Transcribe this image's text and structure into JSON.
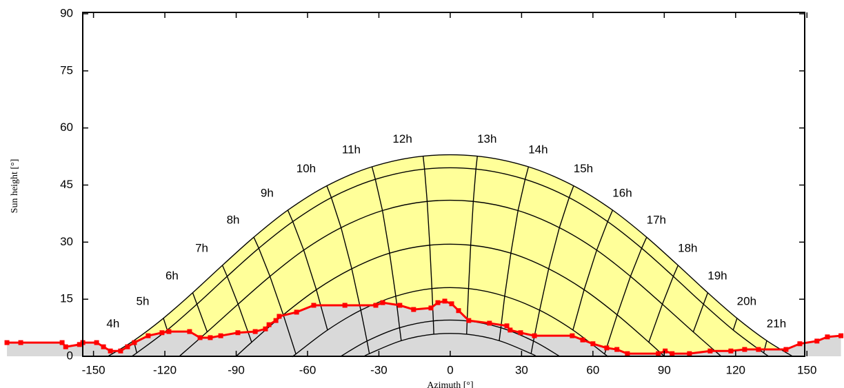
{
  "chart_data": {
    "type": "sunpath",
    "y_label": "Sun height [°]",
    "x_label": "Azimuth [°]",
    "xlim": [
      -187,
      165
    ],
    "ylim": [
      0,
      90
    ],
    "xticks": [
      -150,
      -120,
      -90,
      -60,
      -30,
      0,
      30,
      60,
      90,
      120,
      150
    ],
    "yticks": [
      0,
      15,
      30,
      45,
      60,
      75,
      90
    ],
    "hours": [
      "4h",
      "5h",
      "6h",
      "7h",
      "8h",
      "9h",
      "10h",
      "11h",
      "12h",
      "13h",
      "14h",
      "15h",
      "16h",
      "17h",
      "18h",
      "19h",
      "20h",
      "21h"
    ],
    "sun_color": "#ffff99",
    "line_color": "#000000",
    "curves": [
      {
        "x": [
          -133.1,
          -120.6,
          -108.3,
          -95.8,
          -82.6,
          -68.3,
          -51.9,
          -32.9,
          -11.4,
          11.4,
          32.9,
          51.9,
          68.3,
          82.6,
          95.8,
          108.3,
          120.6,
          133.1
        ],
        "y": [
          4.1,
          10.0,
          16.7,
          23.9,
          31.3,
          38.4,
          44.8,
          49.8,
          52.6,
          52.6,
          49.8,
          44.8,
          38.4,
          31.3,
          23.9,
          16.7,
          10.0,
          4.1
        ],
        "rise": [
          -143.9,
          0
        ],
        "set": [
          143.9,
          0
        ]
      },
      {
        "x": [
          -131.8,
          -119.0,
          -106.5,
          -93.8,
          -80.5,
          -66.2,
          -50.0,
          -31.5,
          -10.8,
          10.8,
          31.5,
          50.0,
          66.2,
          80.5,
          93.8,
          106.5,
          119.0,
          131.8
        ],
        "y": [
          0.9,
          6.9,
          13.7,
          21.0,
          28.4,
          35.4,
          41.7,
          46.5,
          49.2,
          49.2,
          46.5,
          41.7,
          35.4,
          28.4,
          21.0,
          13.7,
          6.9,
          0.9
        ],
        "rise": [
          -134.0,
          0
        ],
        "set": [
          134.0,
          0
        ]
      },
      {
        "x": [
          null,
          null,
          -102.2,
          -89.2,
          -75.8,
          -61.6,
          -45.9,
          -28.5,
          -9.7,
          9.7,
          28.5,
          45.9,
          61.6,
          75.8,
          89.2,
          102.2,
          null,
          null
        ],
        "y": [
          null,
          null,
          6.4,
          13.7,
          21.0,
          27.9,
          33.8,
          38.3,
          40.7,
          40.7,
          38.3,
          33.8,
          27.9,
          21.0,
          13.7,
          6.4,
          null,
          null
        ],
        "rise": [
          -113.9,
          0
        ],
        "set": [
          113.9,
          0
        ]
      },
      {
        "x": [
          null,
          null,
          null,
          -83.5,
          -70.2,
          -56.3,
          -41.4,
          -25.5,
          -8.6,
          8.6,
          25.5,
          41.4,
          56.3,
          70.2,
          83.5,
          null,
          null,
          null
        ],
        "y": [
          null,
          null,
          null,
          3.7,
          10.9,
          17.5,
          23.0,
          27.1,
          29.2,
          29.2,
          27.1,
          23.0,
          17.5,
          10.9,
          3.7,
          null,
          null,
          null
        ],
        "rise": [
          -90,
          0
        ],
        "set": [
          90,
          0
        ]
      },
      {
        "x": [
          null,
          null,
          null,
          null,
          -64.9,
          -51.6,
          -37.6,
          -22.9,
          -7.7,
          7.7,
          22.9,
          37.6,
          51.6,
          64.9,
          null,
          null,
          null,
          null
        ],
        "y": [
          null,
          null,
          null,
          null,
          0.6,
          6.9,
          12.1,
          15.8,
          17.8,
          17.8,
          15.8,
          12.1,
          6.9,
          0.6,
          null,
          null,
          null,
          null
        ],
        "rise": [
          -66.1,
          0
        ],
        "set": [
          66.1,
          0
        ]
      },
      {
        "x": [
          null,
          null,
          null,
          null,
          null,
          null,
          -35.0,
          -21.3,
          -7.1,
          7.1,
          21.3,
          35.0,
          null,
          null,
          null,
          null,
          null,
          null
        ],
        "y": [
          null,
          null,
          null,
          null,
          null,
          null,
          4.0,
          7.5,
          9.3,
          9.3,
          7.5,
          4.0,
          null,
          null,
          null,
          null,
          null,
          null
        ],
        "rise": [
          -46.0,
          0
        ],
        "set": [
          46.0,
          0
        ]
      },
      {
        "x": [
          null,
          null,
          null,
          null,
          null,
          null,
          -34.0,
          -20.6,
          -6.9,
          6.9,
          20.6,
          34.0,
          null,
          null,
          null,
          null,
          null,
          null
        ],
        "y": [
          null,
          null,
          null,
          null,
          null,
          null,
          0.7,
          4.1,
          5.8,
          5.8,
          4.1,
          0.7,
          null,
          null,
          null,
          null,
          null,
          null
        ],
        "rise": [
          -36.1,
          0
        ],
        "set": [
          36.1,
          0
        ]
      }
    ],
    "horizon": {
      "color": "#ff0000",
      "fill": "#d9d9d9",
      "x": [
        -186.4,
        -180.6,
        -163.2,
        -161.7,
        -155.9,
        -154.5,
        -148.7,
        -145.8,
        -142.9,
        -138.6,
        -135.7,
        -132.8,
        -127.0,
        -121.2,
        -118.3,
        -109.6,
        -105.2,
        -100.9,
        -96.5,
        -89.3,
        -82.0,
        -77.7,
        -76.2,
        -73.3,
        -71.9,
        -64.6,
        -57.4,
        -44.3,
        -31.3,
        -28.4,
        -21.2,
        -15.4,
        -8.1,
        -5.2,
        -2.3,
        0.6,
        3.5,
        7.8,
        16.5,
        23.8,
        25.2,
        29.6,
        35.4,
        51.3,
        55.7,
        60.0,
        65.8,
        70.1,
        74.5,
        87.5,
        90.4,
        93.3,
        100.6,
        109.3,
        118.0,
        123.8,
        129.6,
        141.2,
        147.0,
        154.2,
        158.6,
        164.3
      ],
      "y": [
        3.6,
        3.6,
        3.6,
        2.5,
        3.1,
        3.6,
        3.6,
        2.5,
        1.4,
        1.4,
        2.5,
        3.6,
        5.4,
        6.2,
        6.5,
        6.5,
        4.9,
        4.9,
        5.4,
        6.2,
        6.5,
        7.2,
        8.3,
        9.4,
        10.5,
        11.6,
        13.4,
        13.4,
        13.4,
        14.1,
        13.4,
        12.3,
        12.7,
        14.1,
        14.5,
        13.8,
        12.0,
        9.4,
        8.7,
        8.0,
        6.9,
        6.2,
        5.4,
        5.4,
        4.3,
        3.3,
        2.2,
        1.8,
        0.7,
        0.7,
        1.4,
        0.7,
        0.7,
        1.4,
        1.4,
        1.8,
        1.8,
        1.8,
        3.3,
        4.0,
        5.1,
        5.4
      ]
    }
  }
}
